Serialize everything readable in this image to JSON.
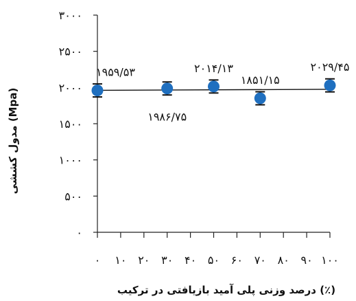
{
  "chart_data": {
    "type": "scatter",
    "title": "",
    "xlabel": "درصد وزنی پلی آمید بازیافتی در ترکیب (٪)",
    "ylabel": "مدول کششی (Mpa)",
    "xlim": [
      0,
      100
    ],
    "ylim": [
      0,
      3000
    ],
    "x_ticks": [
      0,
      10,
      20,
      30,
      40,
      50,
      60,
      70,
      80,
      90,
      100
    ],
    "x_tick_labels": [
      "۰",
      "۱۰",
      "۲۰",
      "۳۰",
      "۴۰",
      "۵۰",
      "۶۰",
      "۷۰",
      "۸۰",
      "۹۰",
      "۱۰۰"
    ],
    "y_ticks": [
      0,
      500,
      1000,
      1500,
      2000,
      2500,
      3000
    ],
    "y_tick_labels": [
      "۰",
      "۵۰۰",
      "۱۰۰۰",
      "۱۵۰۰",
      "۲۰۰۰",
      "۲۵۰۰",
      "۳۰۰۰"
    ],
    "grid": false,
    "marker_color": "#1f6fbf",
    "series": [
      {
        "x": [
          0,
          30,
          50,
          70,
          100
        ],
        "y": [
          1959.53,
          1986.75,
          2014.13,
          1851.15,
          2029.45
        ],
        "error": [
          90,
          90,
          90,
          90,
          90
        ],
        "labels": [
          "۱۹۵۹/۵۳",
          "۱۹۸۶/۷۵",
          "۲۰۱۴/۱۳",
          "۱۸۵۱/۱۵",
          "۲۰۲۹/۴۵"
        ],
        "label_position": [
          "above",
          "below",
          "above",
          "above",
          "above"
        ]
      }
    ],
    "trendline": {
      "type": "linear",
      "color": "#111111"
    }
  }
}
